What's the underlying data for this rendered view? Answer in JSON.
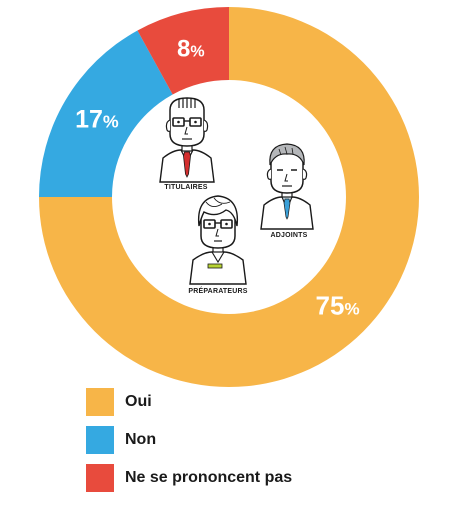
{
  "chart_data": {
    "type": "pie",
    "title": "",
    "categories": [
      "Oui",
      "Non",
      "Ne se prononcent pas"
    ],
    "values": [
      75,
      17,
      8
    ],
    "value_labels": [
      "75",
      "17",
      "8"
    ],
    "unit": "%",
    "colors": [
      "#f7b548",
      "#35a9e1",
      "#e84b3d"
    ],
    "legend_position": "bottom-left"
  },
  "illustrations": {
    "labels": [
      "TITULAIRES",
      "ADJOINTS",
      "PRÉPARATEURS"
    ],
    "icons": [
      "bald-pharmacist-icon",
      "grey-haired-pharmacist-icon",
      "young-pharmacist-icon"
    ]
  }
}
